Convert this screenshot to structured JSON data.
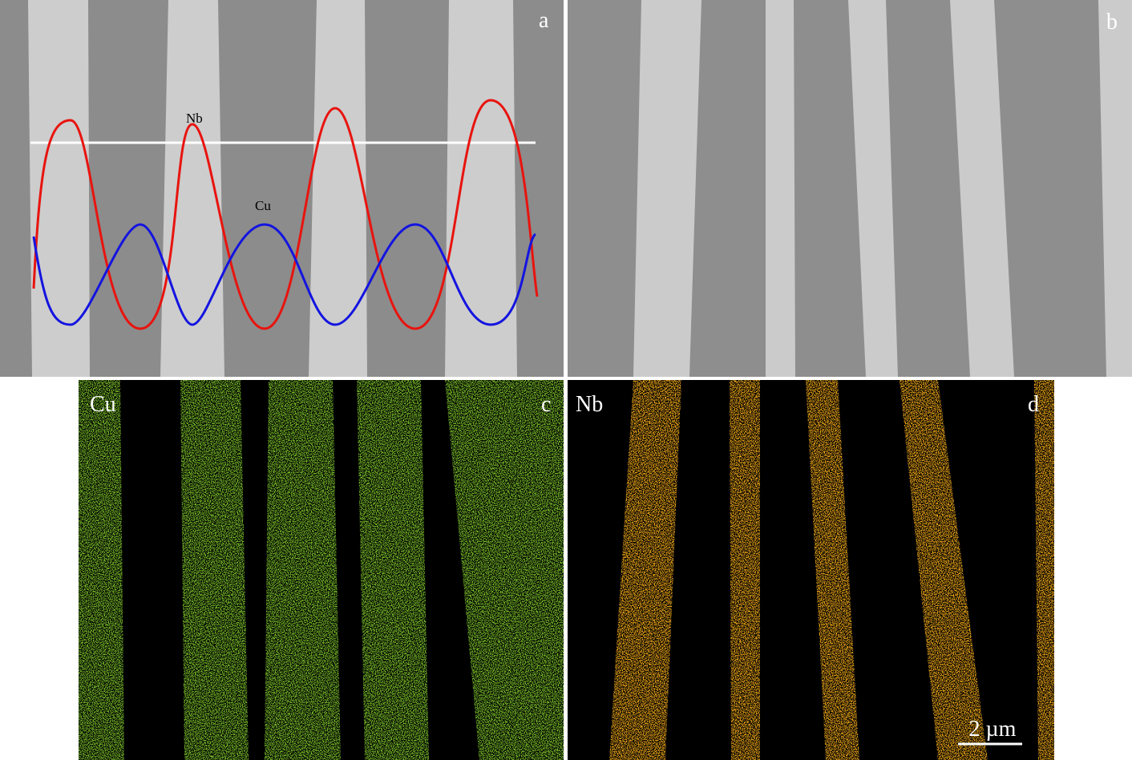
{
  "panels": [
    {
      "label": "a",
      "annotations": [
        "Nb",
        "Cu"
      ]
    },
    {
      "label": "b"
    },
    {
      "label": "c",
      "element": "Cu"
    },
    {
      "label": "d",
      "element": "Nb",
      "scale_bar": "2 µm"
    }
  ]
}
